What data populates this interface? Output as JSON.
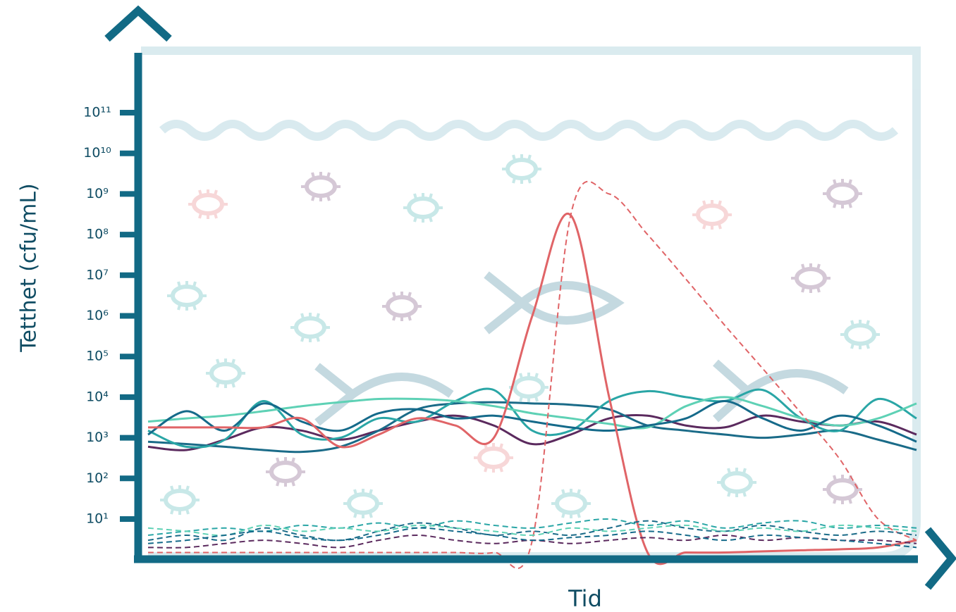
{
  "chart_data": {
    "type": "line",
    "y_label": "Tetthet (cfu/mL)",
    "x_label": "Tid",
    "log_y": true,
    "ylim": [
      1,
      1000000000000
    ],
    "yticks": [
      {
        "value": 10,
        "label": "10¹"
      },
      {
        "value": 100,
        "label": "10²"
      },
      {
        "value": 1000,
        "label": "10³"
      },
      {
        "value": 10000,
        "label": "10⁴"
      },
      {
        "value": 100000,
        "label": "10⁵"
      },
      {
        "value": 1000000,
        "label": "10⁶"
      },
      {
        "value": 10000000,
        "label": "10⁷"
      },
      {
        "value": 100000000,
        "label": "10⁸"
      },
      {
        "value": 1000000000,
        "label": "10⁹"
      },
      {
        "value": 10000000000,
        "label": "10¹⁰"
      },
      {
        "value": 100000000000,
        "label": "10¹¹"
      }
    ],
    "x": [
      0,
      1,
      2,
      3,
      4,
      5,
      6,
      7,
      8,
      9,
      10,
      11,
      12,
      13,
      14,
      15,
      16,
      17,
      18,
      19,
      20
    ],
    "xlim": [
      0,
      20
    ],
    "series": [
      {
        "color": "#5b2a5e",
        "dashed": false,
        "values": [
          600,
          500,
          900,
          1800,
          1500,
          900,
          1500,
          2500,
          3500,
          2000,
          700,
          1200,
          3000,
          3500,
          2000,
          1800,
          3500,
          2500,
          2000,
          2500,
          1200
        ]
      },
      {
        "color": "#1a6b88",
        "dashed": false,
        "values": [
          800,
          700,
          600,
          500,
          450,
          600,
          1500,
          5000,
          7000,
          7500,
          7000,
          6500,
          5000,
          2000,
          1500,
          1200,
          1000,
          1200,
          1500,
          900,
          500
        ]
      },
      {
        "color": "#2aa6a6",
        "dashed": false,
        "values": [
          1500,
          600,
          900,
          8000,
          1200,
          1000,
          3000,
          2500,
          8000,
          15000,
          1500,
          1500,
          8000,
          14000,
          10000,
          8000,
          15000,
          3000,
          1500,
          9000,
          3000
        ]
      },
      {
        "color": "#5ed1b5",
        "dashed": false,
        "values": [
          2500,
          3000,
          3500,
          4500,
          6000,
          7500,
          9000,
          9000,
          8000,
          6000,
          4000,
          3000,
          2200,
          1800,
          6000,
          10000,
          6000,
          3000,
          2000,
          3000,
          7000
        ]
      },
      {
        "color": "#156a8a",
        "dashed": false,
        "values": [
          1200,
          4500,
          1500,
          7000,
          2500,
          1500,
          4000,
          5000,
          3000,
          3500,
          2500,
          1800,
          1500,
          2000,
          3000,
          8000,
          3000,
          1500,
          3500,
          2000,
          800
        ]
      },
      {
        "color": "#e06467",
        "dashed": false,
        "values": [
          1800,
          1800,
          1800,
          1800,
          3000,
          600,
          1200,
          3000,
          2000,
          1000,
          1000000,
          300000000,
          10000,
          1.5,
          1.5,
          1.5,
          1.6,
          1.7,
          1.8,
          2,
          3
        ]
      },
      {
        "color": "#e06467",
        "dashed": true,
        "values": [
          1.5,
          1.5,
          1.5,
          1.5,
          1.5,
          1.5,
          1.5,
          1.5,
          1.5,
          1.5,
          3,
          300000000,
          1000000000,
          100000000,
          8000000,
          600000,
          50000,
          4000,
          300,
          10,
          3
        ]
      },
      {
        "color": "#1a6b88",
        "dashed": true,
        "values": [
          3,
          4,
          3,
          6,
          4,
          3,
          5,
          8,
          6,
          4,
          5,
          4,
          6,
          9,
          6,
          5,
          7,
          5,
          4,
          5,
          4
        ]
      },
      {
        "color": "#2aa6a6",
        "dashed": true,
        "values": [
          4,
          5,
          6,
          5,
          7,
          6,
          8,
          6,
          9,
          7,
          6,
          8,
          10,
          7,
          9,
          6,
          8,
          9,
          6,
          7,
          6
        ]
      },
      {
        "color": "#5ed1b5",
        "dashed": true,
        "values": [
          6,
          5,
          4,
          7,
          5,
          6,
          5,
          7,
          6,
          5,
          4,
          6,
          5,
          6,
          7,
          5,
          6,
          5,
          7,
          6,
          5
        ]
      },
      {
        "color": "#5b2a5e",
        "dashed": true,
        "values": [
          2,
          2,
          2.5,
          3,
          2.5,
          2,
          3,
          4,
          3,
          2.5,
          3,
          2.5,
          3,
          3.5,
          3,
          4,
          3,
          3.5,
          3,
          3,
          2.5
        ]
      },
      {
        "color": "#156a8a",
        "dashed": true,
        "values": [
          2.5,
          3,
          4,
          5,
          3.5,
          3,
          4,
          6,
          5,
          4,
          3,
          3.5,
          4,
          5,
          4,
          3,
          4,
          3.5,
          3,
          2.5,
          2
        ]
      }
    ]
  }
}
